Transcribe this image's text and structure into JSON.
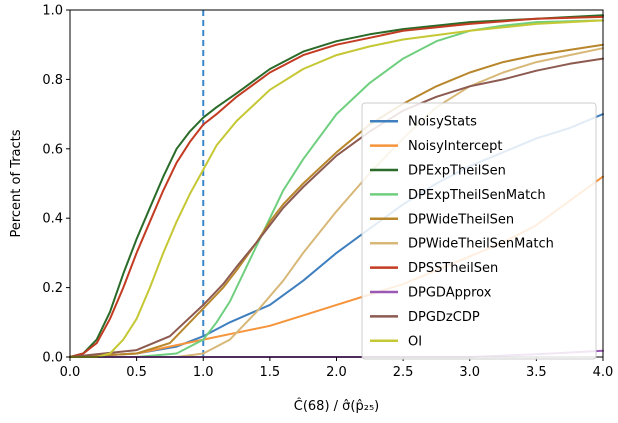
{
  "chart_data": {
    "type": "line",
    "xlabel": "Ĉ(68) / σ̂(p̂₂₅)",
    "ylabel": "Percent of Tracts",
    "xlim": [
      0.0,
      4.0
    ],
    "ylim": [
      0.0,
      1.0
    ],
    "x_ticks": [
      "0.0",
      "0.5",
      "1.0",
      "1.5",
      "2.0",
      "2.5",
      "3.0",
      "3.5",
      "4.0"
    ],
    "y_ticks": [
      "0.0",
      "0.2",
      "0.4",
      "0.6",
      "0.8",
      "1.0"
    ],
    "grid": false,
    "legend_position": "lower-right",
    "reference_line": {
      "x": 1.0,
      "style": "dashed",
      "color": "#3a86c8"
    },
    "series": [
      {
        "name": "NoisyStats",
        "color": "#3f7fbf",
        "points": [
          [
            0,
            0
          ],
          [
            0.5,
            0.01
          ],
          [
            0.8,
            0.03
          ],
          [
            1.0,
            0.06
          ],
          [
            1.2,
            0.1
          ],
          [
            1.5,
            0.15
          ],
          [
            1.75,
            0.22
          ],
          [
            2.0,
            0.3
          ],
          [
            2.25,
            0.37
          ],
          [
            2.5,
            0.44
          ],
          [
            2.75,
            0.5
          ],
          [
            3.0,
            0.55
          ],
          [
            3.25,
            0.59
          ],
          [
            3.5,
            0.63
          ],
          [
            3.75,
            0.66
          ],
          [
            4.0,
            0.7
          ]
        ]
      },
      {
        "name": "NoisyIntercept",
        "color": "#f5943a",
        "points": [
          [
            0,
            0
          ],
          [
            0.5,
            0.01
          ],
          [
            1.0,
            0.05
          ],
          [
            1.25,
            0.07
          ],
          [
            1.5,
            0.09
          ],
          [
            1.75,
            0.12
          ],
          [
            2.0,
            0.15
          ],
          [
            2.25,
            0.18
          ],
          [
            2.5,
            0.21
          ],
          [
            2.75,
            0.25
          ],
          [
            3.0,
            0.29
          ],
          [
            3.25,
            0.33
          ],
          [
            3.5,
            0.38
          ],
          [
            3.75,
            0.45
          ],
          [
            4.0,
            0.52
          ]
        ]
      },
      {
        "name": "DPExpTheilSen",
        "color": "#2a6b2a",
        "points": [
          [
            0,
            0
          ],
          [
            0.1,
            0.01
          ],
          [
            0.2,
            0.05
          ],
          [
            0.3,
            0.13
          ],
          [
            0.4,
            0.24
          ],
          [
            0.5,
            0.34
          ],
          [
            0.6,
            0.43
          ],
          [
            0.7,
            0.52
          ],
          [
            0.8,
            0.6
          ],
          [
            0.9,
            0.65
          ],
          [
            1.0,
            0.69
          ],
          [
            1.1,
            0.72
          ],
          [
            1.25,
            0.76
          ],
          [
            1.5,
            0.83
          ],
          [
            1.75,
            0.88
          ],
          [
            2.0,
            0.91
          ],
          [
            2.25,
            0.93
          ],
          [
            2.5,
            0.945
          ],
          [
            2.75,
            0.955
          ],
          [
            3.0,
            0.965
          ],
          [
            3.5,
            0.975
          ],
          [
            4.0,
            0.985
          ]
        ]
      },
      {
        "name": "DPExpTheilSenMatch",
        "color": "#6fcf7f",
        "points": [
          [
            0,
            0
          ],
          [
            0.5,
            0.0
          ],
          [
            0.8,
            0.01
          ],
          [
            1.0,
            0.05
          ],
          [
            1.1,
            0.1
          ],
          [
            1.2,
            0.16
          ],
          [
            1.3,
            0.24
          ],
          [
            1.4,
            0.32
          ],
          [
            1.5,
            0.4
          ],
          [
            1.6,
            0.48
          ],
          [
            1.75,
            0.57
          ],
          [
            2.0,
            0.7
          ],
          [
            2.25,
            0.79
          ],
          [
            2.5,
            0.86
          ],
          [
            2.75,
            0.91
          ],
          [
            3.0,
            0.94
          ],
          [
            3.25,
            0.955
          ],
          [
            3.5,
            0.965
          ],
          [
            4.0,
            0.97
          ]
        ]
      },
      {
        "name": "DPWideTheilSen",
        "color": "#b8862b",
        "points": [
          [
            0,
            0
          ],
          [
            0.5,
            0.01
          ],
          [
            0.75,
            0.04
          ],
          [
            1.0,
            0.14
          ],
          [
            1.15,
            0.2
          ],
          [
            1.25,
            0.25
          ],
          [
            1.4,
            0.33
          ],
          [
            1.5,
            0.39
          ],
          [
            1.6,
            0.44
          ],
          [
            1.75,
            0.5
          ],
          [
            2.0,
            0.59
          ],
          [
            2.25,
            0.67
          ],
          [
            2.5,
            0.73
          ],
          [
            2.75,
            0.78
          ],
          [
            3.0,
            0.82
          ],
          [
            3.25,
            0.85
          ],
          [
            3.5,
            0.87
          ],
          [
            3.75,
            0.885
          ],
          [
            4.0,
            0.9
          ]
        ]
      },
      {
        "name": "DPWideTheilSenMatch",
        "color": "#d8b878",
        "points": [
          [
            0,
            0
          ],
          [
            0.8,
            0.0
          ],
          [
            1.0,
            0.01
          ],
          [
            1.2,
            0.05
          ],
          [
            1.4,
            0.13
          ],
          [
            1.6,
            0.22
          ],
          [
            1.75,
            0.3
          ],
          [
            2.0,
            0.42
          ],
          [
            2.25,
            0.53
          ],
          [
            2.5,
            0.63
          ],
          [
            2.75,
            0.72
          ],
          [
            3.0,
            0.78
          ],
          [
            3.25,
            0.82
          ],
          [
            3.5,
            0.85
          ],
          [
            3.75,
            0.87
          ],
          [
            4.0,
            0.89
          ]
        ]
      },
      {
        "name": "DPSSTheilSen",
        "color": "#c23b22",
        "points": [
          [
            0,
            0
          ],
          [
            0.1,
            0.01
          ],
          [
            0.2,
            0.04
          ],
          [
            0.3,
            0.11
          ],
          [
            0.4,
            0.2
          ],
          [
            0.5,
            0.3
          ],
          [
            0.6,
            0.39
          ],
          [
            0.7,
            0.48
          ],
          [
            0.8,
            0.56
          ],
          [
            0.9,
            0.62
          ],
          [
            1.0,
            0.67
          ],
          [
            1.1,
            0.7
          ],
          [
            1.25,
            0.75
          ],
          [
            1.5,
            0.82
          ],
          [
            1.75,
            0.87
          ],
          [
            2.0,
            0.9
          ],
          [
            2.25,
            0.92
          ],
          [
            2.5,
            0.94
          ],
          [
            3.0,
            0.96
          ],
          [
            3.5,
            0.975
          ],
          [
            4.0,
            0.98
          ]
        ]
      },
      {
        "name": "DPGDApprox",
        "color": "#9b59b6",
        "points": [
          [
            0,
            0
          ],
          [
            3.0,
            0.0
          ],
          [
            3.5,
            0.008
          ],
          [
            4.0,
            0.018
          ]
        ]
      },
      {
        "name": "DPGDzCDP",
        "color": "#8c5a50",
        "points": [
          [
            0,
            0
          ],
          [
            0.5,
            0.02
          ],
          [
            0.75,
            0.06
          ],
          [
            1.0,
            0.15
          ],
          [
            1.15,
            0.21
          ],
          [
            1.25,
            0.26
          ],
          [
            1.4,
            0.33
          ],
          [
            1.5,
            0.38
          ],
          [
            1.6,
            0.43
          ],
          [
            1.75,
            0.49
          ],
          [
            2.0,
            0.58
          ],
          [
            2.25,
            0.65
          ],
          [
            2.5,
            0.71
          ],
          [
            2.75,
            0.75
          ],
          [
            3.0,
            0.78
          ],
          [
            3.25,
            0.8
          ],
          [
            3.5,
            0.825
          ],
          [
            3.75,
            0.845
          ],
          [
            4.0,
            0.86
          ]
        ]
      },
      {
        "name": "OI",
        "color": "#c5c834",
        "points": [
          [
            0,
            0
          ],
          [
            0.2,
            0.0
          ],
          [
            0.3,
            0.01
          ],
          [
            0.4,
            0.05
          ],
          [
            0.5,
            0.11
          ],
          [
            0.6,
            0.2
          ],
          [
            0.7,
            0.3
          ],
          [
            0.8,
            0.39
          ],
          [
            0.9,
            0.47
          ],
          [
            1.0,
            0.54
          ],
          [
            1.1,
            0.61
          ],
          [
            1.25,
            0.68
          ],
          [
            1.5,
            0.77
          ],
          [
            1.75,
            0.83
          ],
          [
            2.0,
            0.87
          ],
          [
            2.25,
            0.895
          ],
          [
            2.5,
            0.915
          ],
          [
            3.0,
            0.94
          ],
          [
            3.5,
            0.96
          ],
          [
            4.0,
            0.97
          ]
        ]
      }
    ]
  }
}
